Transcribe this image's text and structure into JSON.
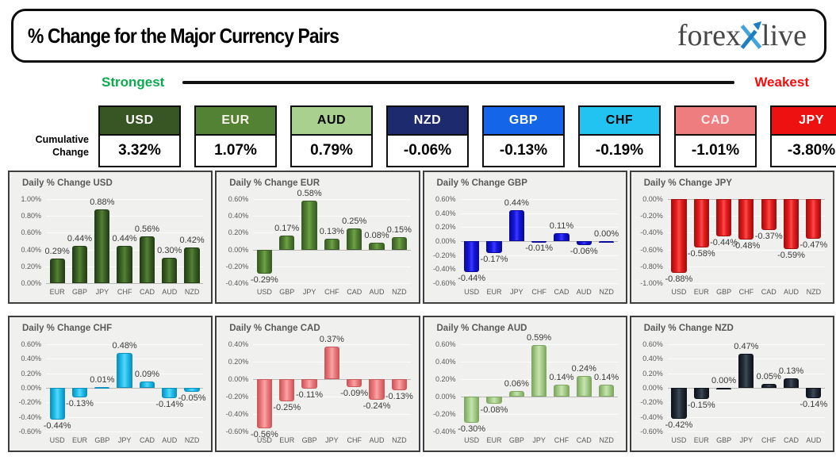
{
  "header": {
    "title": "% Change for the Major Currency Pairs",
    "logo": {
      "part1": "forex",
      "part2": "live",
      "x_light": "#43a5da",
      "x_dark": "#1e7ec2",
      "text_color": "#474747"
    }
  },
  "scale": {
    "strongest": "Strongest",
    "weakest": "Weakest",
    "strongest_color": "#0caa4e",
    "weakest_color": "#f30d0d"
  },
  "cumulative": {
    "label_line1": "Cumulative",
    "label_line2": "Change",
    "items": [
      {
        "code": "USD",
        "value": "3.32%",
        "bg": "#375623",
        "fg": "#ffffff"
      },
      {
        "code": "EUR",
        "value": "1.07%",
        "bg": "#548235",
        "fg": "#f7f4e8"
      },
      {
        "code": "AUD",
        "value": "0.79%",
        "bg": "#a9d08e",
        "fg": "#000000"
      },
      {
        "code": "NZD",
        "value": "-0.06%",
        "bg": "#1e2a6e",
        "fg": "#ffffff"
      },
      {
        "code": "GBP",
        "value": "-0.13%",
        "bg": "#1565e8",
        "fg": "#ffffff"
      },
      {
        "code": "CHF",
        "value": "-0.19%",
        "bg": "#22c3f0",
        "fg": "#000000"
      },
      {
        "code": "CAD",
        "value": "-1.01%",
        "bg": "#ee7d80",
        "fg": "#fdeeee"
      },
      {
        "code": "JPY",
        "value": "-3.80%",
        "bg": "#ee1111",
        "fg": "#ffffff"
      }
    ]
  },
  "chart_data": [
    {
      "type": "bar",
      "title": "Daily % Change USD",
      "id": "usd",
      "categories": [
        "EUR",
        "GBP",
        "JPY",
        "CHF",
        "CAD",
        "AUD",
        "NZD"
      ],
      "values": [
        0.29,
        0.44,
        0.88,
        0.44,
        0.56,
        0.3,
        0.42
      ],
      "labels": [
        "0.29%",
        "0.44%",
        "0.88%",
        "0.44%",
        "0.56%",
        "0.30%",
        "0.42%"
      ],
      "ylim": [
        0,
        1.0
      ],
      "ytick_values": [
        1.0,
        0.8,
        0.6,
        0.4,
        0.2,
        0.0
      ],
      "ytick_labels": [
        "1.00%",
        "0.80%",
        "0.60%",
        "0.40%",
        "0.20%",
        "0.00%"
      ],
      "color": "#3d6327",
      "color_light": "#548233",
      "color_dark": "#253f17"
    },
    {
      "type": "bar",
      "title": "Daily % Change EUR",
      "id": "eur",
      "categories": [
        "USD",
        "GBP",
        "JPY",
        "CHF",
        "CAD",
        "AUD",
        "NZD"
      ],
      "values": [
        -0.29,
        0.17,
        0.58,
        0.13,
        0.25,
        0.08,
        0.15
      ],
      "labels": [
        "-0.29%",
        "0.17%",
        "0.58%",
        "0.13%",
        "0.25%",
        "0.08%",
        "0.15%"
      ],
      "ylim": [
        -0.4,
        0.6
      ],
      "ytick_values": [
        0.6,
        0.4,
        0.2,
        0.0,
        -0.2,
        -0.4
      ],
      "ytick_labels": [
        "0.60%",
        "0.40%",
        "0.20%",
        "0.00%",
        "-0.20%",
        "-0.40%"
      ],
      "color": "#548235",
      "color_light": "#6da345",
      "color_dark": "#3a5c25"
    },
    {
      "type": "bar",
      "title": "Daily % Change GBP",
      "id": "gbp",
      "categories": [
        "USD",
        "EUR",
        "JPY",
        "CHF",
        "CAD",
        "AUD",
        "NZD"
      ],
      "values": [
        -0.44,
        -0.17,
        0.44,
        -0.01,
        0.11,
        -0.06,
        0.0
      ],
      "labels": [
        "-0.44%",
        "-0.17%",
        "0.44%",
        "-0.01%",
        "0.11%",
        "-0.06%",
        "0.00%"
      ],
      "ylim": [
        -0.6,
        0.6
      ],
      "ytick_values": [
        0.6,
        0.4,
        0.2,
        0.0,
        -0.2,
        -0.4,
        -0.6
      ],
      "ytick_labels": [
        "0.60%",
        "0.40%",
        "0.20%",
        "0.00%",
        "-0.20%",
        "-0.40%",
        "-0.60%"
      ],
      "color": "#1414dd",
      "color_light": "#3c3cff",
      "color_dark": "#0b0b9b"
    },
    {
      "type": "bar",
      "title": "Daily % Change JPY",
      "id": "jpy",
      "categories": [
        "USD",
        "EUR",
        "GBP",
        "CHF",
        "CAD",
        "AUD",
        "NZD"
      ],
      "values": [
        -0.88,
        -0.58,
        -0.44,
        -0.48,
        -0.37,
        -0.59,
        -0.47
      ],
      "labels": [
        "-0.88%",
        "-0.58%",
        "-0.44%",
        "-0.48%",
        "-0.37%",
        "-0.59%",
        "-0.47%"
      ],
      "ylim": [
        -1.0,
        0.0
      ],
      "ytick_values": [
        0.0,
        -0.2,
        -0.4,
        -0.6,
        -0.8,
        -1.0
      ],
      "ytick_labels": [
        "0.00%",
        "-0.20%",
        "-0.40%",
        "-0.60%",
        "-0.80%",
        "-1.00%"
      ],
      "color": "#e51b1b",
      "color_light": "#f74c4c",
      "color_dark": "#a60f0f"
    },
    {
      "type": "bar",
      "title": "Daily % Change CHF",
      "id": "chf",
      "categories": [
        "USD",
        "EUR",
        "GBP",
        "JPY",
        "CAD",
        "AUD",
        "NZD"
      ],
      "values": [
        -0.44,
        -0.13,
        0.01,
        0.48,
        0.09,
        -0.14,
        -0.05
      ],
      "labels": [
        "-0.44%",
        "-0.13%",
        "0.01%",
        "0.48%",
        "0.09%",
        "-0.14%",
        "-0.05%"
      ],
      "ylim": [
        -0.6,
        0.6
      ],
      "ytick_values": [
        0.6,
        0.4,
        0.2,
        0.0,
        -0.2,
        -0.4,
        -0.6
      ],
      "ytick_labels": [
        "0.60%",
        "0.40%",
        "0.20%",
        "0.00%",
        "-0.20%",
        "-0.40%",
        "-0.60%"
      ],
      "color": "#22c0ee",
      "color_light": "#5ad6f8",
      "color_dark": "#0f90bd"
    },
    {
      "type": "bar",
      "title": "Daily % Change CAD",
      "id": "cad",
      "categories": [
        "USD",
        "EUR",
        "GBP",
        "JPY",
        "CHF",
        "AUD",
        "NZD"
      ],
      "values": [
        -0.56,
        -0.25,
        -0.11,
        0.37,
        -0.09,
        -0.24,
        -0.13
      ],
      "labels": [
        "-0.56%",
        "-0.25%",
        "-0.11%",
        "0.37%",
        "-0.09%",
        "-0.24%",
        "-0.13%"
      ],
      "ylim": [
        -0.6,
        0.4
      ],
      "ytick_values": [
        0.4,
        0.2,
        0.0,
        -0.2,
        -0.4,
        -0.6
      ],
      "ytick_labels": [
        "0.40%",
        "0.20%",
        "0.00%",
        "-0.20%",
        "-0.40%",
        "-0.60%"
      ],
      "color": "#ef7e81",
      "color_light": "#f8a6a8",
      "color_dark": "#cd585c"
    },
    {
      "type": "bar",
      "title": "Daily % Change AUD",
      "id": "aud",
      "categories": [
        "USD",
        "EUR",
        "GBP",
        "JPY",
        "CHF",
        "CAD",
        "NZD"
      ],
      "values": [
        -0.3,
        -0.08,
        0.06,
        0.59,
        0.14,
        0.24,
        0.14
      ],
      "labels": [
        "-0.30%",
        "-0.08%",
        "0.06%",
        "0.59%",
        "0.14%",
        "0.24%",
        "0.14%"
      ],
      "ylim": [
        -0.4,
        0.6
      ],
      "ytick_values": [
        0.6,
        0.4,
        0.2,
        0.0,
        -0.2,
        -0.4
      ],
      "ytick_labels": [
        "0.60%",
        "0.40%",
        "0.20%",
        "0.00%",
        "-0.20%",
        "-0.40%"
      ],
      "color": "#a9d08e",
      "color_light": "#c6e4b0",
      "color_dark": "#81a862"
    },
    {
      "type": "bar",
      "title": "Daily % Change NZD",
      "id": "nzd",
      "categories": [
        "USD",
        "EUR",
        "GBP",
        "JPY",
        "CHF",
        "CAD",
        "AUD"
      ],
      "values": [
        -0.42,
        -0.15,
        0.0,
        0.47,
        0.05,
        0.13,
        -0.14
      ],
      "labels": [
        "-0.42%",
        "-0.15%",
        "0.00%",
        "0.47%",
        "0.05%",
        "0.13%",
        "-0.14%"
      ],
      "ylim": [
        -0.6,
        0.6
      ],
      "ytick_values": [
        0.6,
        0.4,
        0.2,
        0.0,
        -0.2,
        -0.4,
        -0.6
      ],
      "ytick_labels": [
        "0.60%",
        "0.40%",
        "0.20%",
        "0.00%",
        "-0.20%",
        "-0.40%",
        "-0.60%"
      ],
      "color": "#242d39",
      "color_light": "#3e4a59",
      "color_dark": "#10151c"
    }
  ]
}
